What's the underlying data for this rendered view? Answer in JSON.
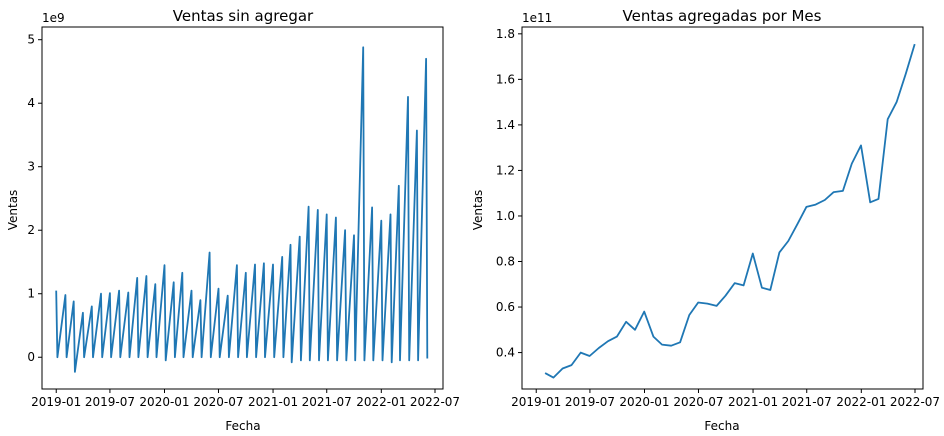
{
  "chart_data": [
    {
      "type": "line",
      "title": "Ventas sin agregar",
      "xlabel": "Fecha",
      "ylabel": "Ventas",
      "offset_text": "1e9",
      "y_scale_factor": 1000000000.0,
      "color": "#1f77b4",
      "x_ticks": [
        "2019-01",
        "2019-07",
        "2020-01",
        "2020-07",
        "2021-01",
        "2021-07",
        "2022-01",
        "2022-07"
      ],
      "y_ticks": [
        "0",
        "1",
        "2",
        "3",
        "4",
        "5"
      ],
      "xlim": [
        "2018-11-14",
        "2022-07-28"
      ],
      "ylim": [
        -0.5,
        5.2
      ],
      "x": [
        "2019-01-01",
        "2019-01-05",
        "2019-02-01",
        "2019-02-05",
        "2019-03-01",
        "2019-03-05",
        "2019-04-01",
        "2019-04-05",
        "2019-05-01",
        "2019-05-05",
        "2019-06-01",
        "2019-06-05",
        "2019-07-01",
        "2019-07-05",
        "2019-08-01",
        "2019-08-05",
        "2019-09-01",
        "2019-09-05",
        "2019-10-01",
        "2019-10-05",
        "2019-11-01",
        "2019-11-05",
        "2019-12-01",
        "2019-12-05",
        "2020-01-01",
        "2020-01-05",
        "2020-02-01",
        "2020-02-05",
        "2020-03-01",
        "2020-03-05",
        "2020-04-01",
        "2020-04-05",
        "2020-05-01",
        "2020-05-05",
        "2020-06-01",
        "2020-06-05",
        "2020-07-01",
        "2020-07-05",
        "2020-08-01",
        "2020-08-05",
        "2020-09-01",
        "2020-09-05",
        "2020-10-01",
        "2020-10-05",
        "2020-11-01",
        "2020-11-05",
        "2020-12-01",
        "2020-12-05",
        "2021-01-01",
        "2021-01-05",
        "2021-02-01",
        "2021-02-05",
        "2021-03-01",
        "2021-03-05",
        "2021-04-01",
        "2021-04-05",
        "2021-05-01",
        "2021-05-05",
        "2021-06-01",
        "2021-06-05",
        "2021-07-01",
        "2021-07-05",
        "2021-08-01",
        "2021-08-05",
        "2021-09-01",
        "2021-09-05",
        "2021-10-01",
        "2021-10-05",
        "2021-11-01",
        "2021-11-05",
        "2021-12-01",
        "2021-12-05",
        "2022-01-01",
        "2022-01-05",
        "2022-02-01",
        "2022-02-05",
        "2022-03-01",
        "2022-03-05",
        "2022-04-01",
        "2022-04-05",
        "2022-05-01",
        "2022-05-05",
        "2022-06-01",
        "2022-06-05"
      ],
      "values": [
        1.05,
        0.0,
        0.98,
        0.0,
        0.88,
        -0.23,
        0.7,
        0.0,
        0.8,
        0.0,
        1.0,
        0.0,
        1.01,
        0.0,
        1.05,
        0.0,
        1.02,
        0.0,
        1.25,
        0.0,
        1.28,
        0.0,
        1.15,
        0.0,
        1.45,
        -0.05,
        1.18,
        0.0,
        1.33,
        0.0,
        1.05,
        0.0,
        0.9,
        0.0,
        1.65,
        0.0,
        1.08,
        0.0,
        0.97,
        0.0,
        1.45,
        0.0,
        1.33,
        0.0,
        1.46,
        0.0,
        1.48,
        0.0,
        1.46,
        0.0,
        1.58,
        0.0,
        1.77,
        -0.08,
        1.9,
        -0.05,
        2.37,
        -0.05,
        2.32,
        -0.05,
        2.25,
        -0.05,
        2.2,
        -0.05,
        2.0,
        -0.05,
        1.92,
        -0.05,
        4.88,
        -0.05,
        2.36,
        -0.05,
        2.15,
        -0.05,
        2.25,
        -0.08,
        2.7,
        -0.05,
        4.1,
        -0.05,
        3.57,
        -0.05,
        4.7,
        -0.02
      ]
    },
    {
      "type": "line",
      "title": "Ventas agregadas por Mes",
      "xlabel": "Fecha",
      "ylabel": "Ventas",
      "offset_text": "1e11",
      "y_scale_factor": 100000000000.0,
      "color": "#1f77b4",
      "x_ticks": [
        "2019-01",
        "2019-07",
        "2020-01",
        "2020-07",
        "2021-01",
        "2021-07",
        "2022-01",
        "2022-07"
      ],
      "y_ticks": [
        "0.4",
        "0.6",
        "0.8",
        "1.0",
        "1.2",
        "1.4",
        "1.6",
        "1.8"
      ],
      "xlim": [
        "2018-11-14",
        "2022-07-28"
      ],
      "ylim": [
        0.24,
        1.83
      ],
      "x": [
        "2019-01-31",
        "2019-02-28",
        "2019-03-31",
        "2019-04-30",
        "2019-05-31",
        "2019-06-30",
        "2019-07-31",
        "2019-08-31",
        "2019-09-30",
        "2019-10-31",
        "2019-11-30",
        "2019-12-31",
        "2020-01-31",
        "2020-02-29",
        "2020-03-31",
        "2020-04-30",
        "2020-05-31",
        "2020-06-30",
        "2020-07-31",
        "2020-08-31",
        "2020-09-30",
        "2020-10-31",
        "2020-11-30",
        "2020-12-31",
        "2021-01-31",
        "2021-02-28",
        "2021-03-31",
        "2021-04-30",
        "2021-05-31",
        "2021-06-30",
        "2021-07-31",
        "2021-08-31",
        "2021-09-30",
        "2021-10-31",
        "2021-11-30",
        "2021-12-31",
        "2022-01-31",
        "2022-02-28",
        "2022-03-31",
        "2022-04-30",
        "2022-05-31",
        "2022-06-30"
      ],
      "values": [
        0.31,
        0.29,
        0.33,
        0.345,
        0.4,
        0.385,
        0.42,
        0.45,
        0.47,
        0.535,
        0.5,
        0.58,
        0.47,
        0.435,
        0.43,
        0.445,
        0.565,
        0.62,
        0.615,
        0.605,
        0.65,
        0.705,
        0.695,
        0.835,
        0.685,
        0.675,
        0.84,
        0.89,
        0.965,
        1.04,
        1.05,
        1.07,
        1.105,
        1.11,
        1.23,
        1.31,
        1.06,
        1.075,
        1.425,
        1.5,
        1.625,
        1.755
      ]
    }
  ]
}
